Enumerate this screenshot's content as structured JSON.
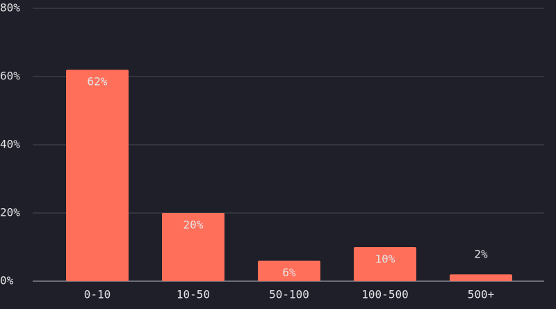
{
  "chart_data": {
    "type": "bar",
    "categories": [
      "0-10",
      "10-50",
      "50-100",
      "100-500",
      "500+"
    ],
    "values": [
      62,
      20,
      6,
      10,
      2
    ],
    "value_labels": [
      "62%",
      "20%",
      "6%",
      "10%",
      "2%"
    ],
    "color": "#ff6f59",
    "ylim": [
      0,
      80
    ],
    "yticks": [
      {
        "value": 0,
        "label": "0%"
      },
      {
        "value": 20,
        "label": "20%"
      },
      {
        "value": 40,
        "label": "40%"
      },
      {
        "value": 60,
        "label": "60%"
      },
      {
        "value": 80,
        "label": "80%"
      }
    ],
    "grid": true
  }
}
